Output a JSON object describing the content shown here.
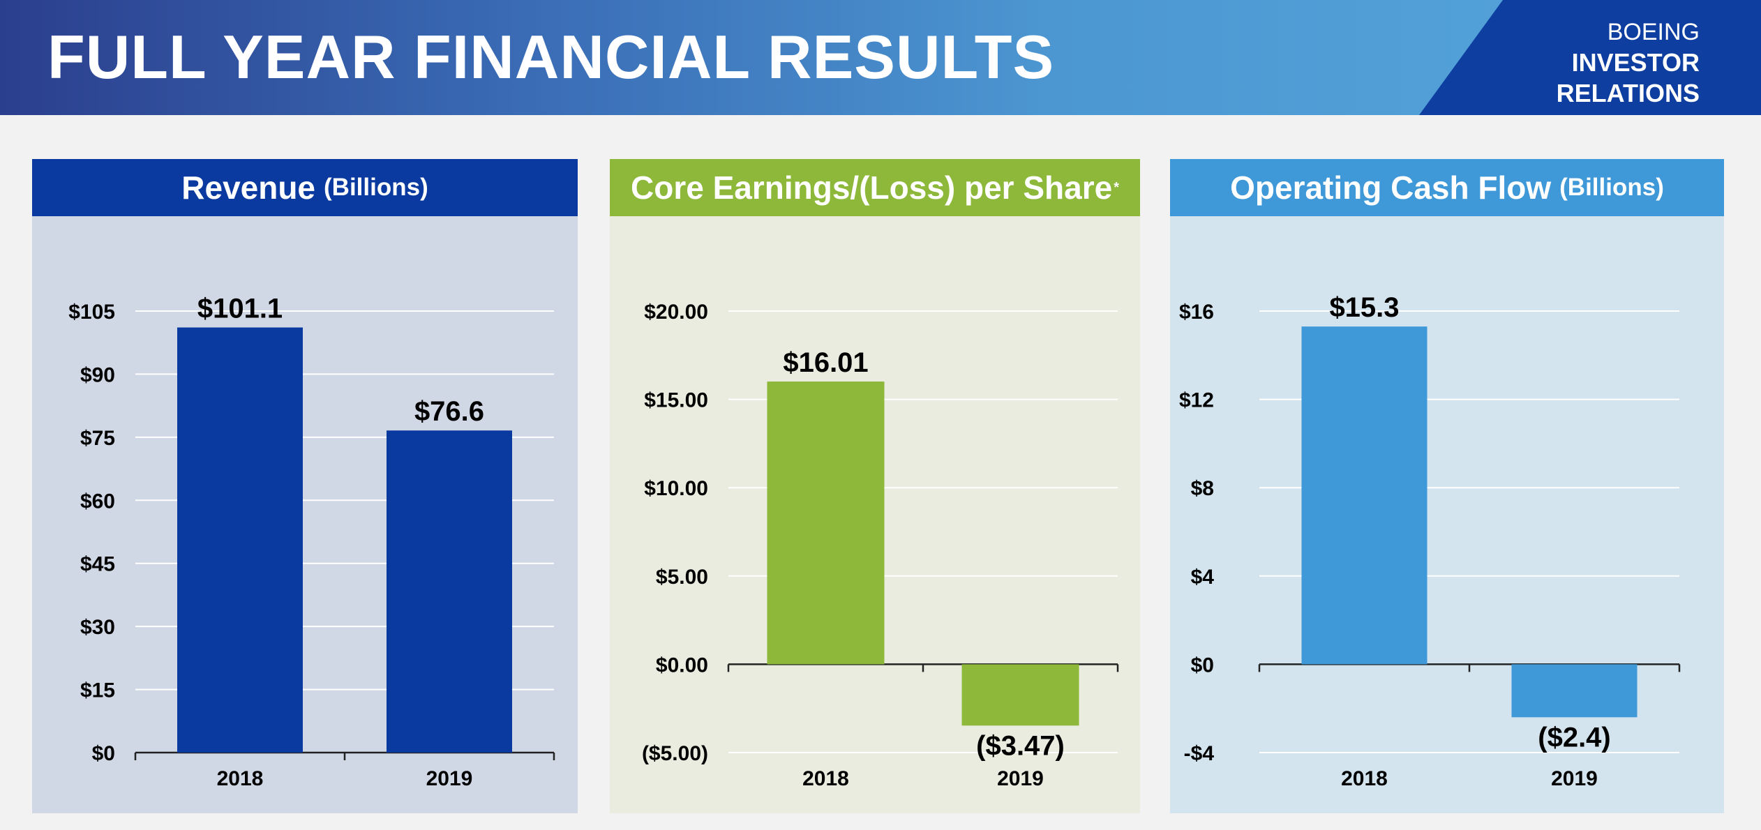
{
  "header": {
    "title": "FULL YEAR FINANCIAL RESULTS",
    "brand_line1": "BOEING",
    "brand_line2": "INVESTOR",
    "brand_line3": "RELATIONS"
  },
  "colors": {
    "revenue": "#0a3aa0",
    "core_eps": "#8db83a",
    "cash_flow": "#3f99d9"
  },
  "panels": [
    {
      "title": "Revenue",
      "subtitle": "(Billions)",
      "superscript": ""
    },
    {
      "title": "Core Earnings/(Loss) per Share",
      "subtitle": "",
      "superscript": "*"
    },
    {
      "title": "Operating Cash Flow",
      "subtitle": "(Billions)",
      "superscript": ""
    }
  ],
  "chart_data": [
    {
      "type": "bar",
      "title": "Revenue (Billions)",
      "categories": [
        "2018",
        "2019"
      ],
      "values": [
        101.1,
        76.6
      ],
      "value_labels": [
        "$101.1",
        "$76.6"
      ],
      "ylim": [
        0,
        105
      ],
      "yticks": [
        0,
        15,
        30,
        45,
        60,
        75,
        90,
        105
      ],
      "ytick_labels": [
        "$0",
        "$15",
        "$30",
        "$45",
        "$60",
        "$75",
        "$90",
        "$105"
      ],
      "grid": true,
      "color": "#0a3aa0"
    },
    {
      "type": "bar",
      "title": "Core Earnings/(Loss) per Share*",
      "categories": [
        "2018",
        "2019"
      ],
      "values": [
        16.01,
        -3.47
      ],
      "value_labels": [
        "$16.01",
        "($3.47)"
      ],
      "ylim": [
        -5,
        20
      ],
      "yticks": [
        -5,
        0,
        5,
        10,
        15,
        20
      ],
      "ytick_labels": [
        "($5.00)",
        "$0.00",
        "$5.00",
        "$10.00",
        "$15.00",
        "$20.00"
      ],
      "grid": true,
      "color": "#8db83a"
    },
    {
      "type": "bar",
      "title": "Operating Cash Flow (Billions)",
      "categories": [
        "2018",
        "2019"
      ],
      "values": [
        15.3,
        -2.4
      ],
      "value_labels": [
        "$15.3",
        "($2.4)"
      ],
      "ylim": [
        -4,
        16
      ],
      "yticks": [
        -4,
        0,
        4,
        8,
        12,
        16
      ],
      "ytick_labels": [
        "-$4",
        "$0",
        "$4",
        "$8",
        "$12",
        "$16"
      ],
      "grid": true,
      "color": "#3f99d9"
    }
  ]
}
